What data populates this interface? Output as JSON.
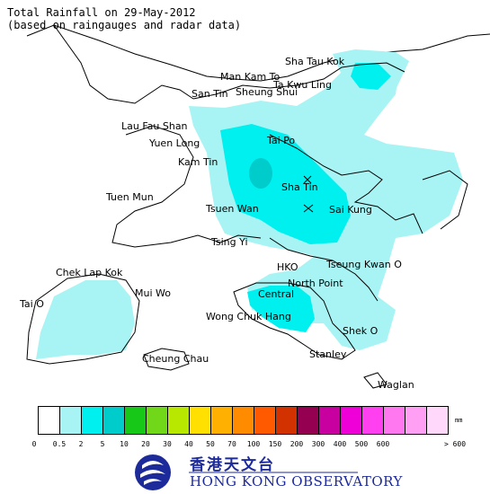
{
  "title": {
    "line1": "Total Rainfall on 29-May-2012",
    "line2": "(based on raingauges and radar data)"
  },
  "places": [
    "Sha Tau Kok",
    "Man Kam To",
    "Ta Kwu Ling",
    "San Tin",
    "Sheung Shui",
    "Lau Fau Shan",
    "Yuen Long",
    "Tai Po",
    "Kam Tin",
    "Sha Tin",
    "Tuen Mun",
    "Tsuen Wan",
    "Sai Kung",
    "Tsing Yi",
    "HKO",
    "Tseung Kwan O",
    "Chek Lap Kok",
    "North Point",
    "Central",
    "Mui Wo",
    "Tai O",
    "Wong Chuk Hang",
    "Shek O",
    "Stanley",
    "Cheung Chau",
    "Waglan"
  ],
  "legend": {
    "colors": [
      "#ffffff",
      "#a8f4f4",
      "#00f0f0",
      "#00cccc",
      "#18c818",
      "#70d818",
      "#b8e800",
      "#ffe000",
      "#ffb000",
      "#ff8c00",
      "#ff5a00",
      "#d23200",
      "#960050",
      "#c800a0",
      "#f000d8",
      "#ff40f0",
      "#ff78f0",
      "#ffa0f4",
      "#ffd8fc"
    ],
    "ticks": [
      "0",
      "0.5",
      "2",
      "5",
      "10",
      "20",
      "30",
      "40",
      "50",
      "70",
      "100",
      "150",
      "200",
      "300",
      "400",
      "500",
      "600",
      "> 600"
    ],
    "unit": "mm"
  },
  "logo": {
    "name_cn": "香港天文台",
    "name_en": "HONG KONG OBSERVATORY"
  }
}
